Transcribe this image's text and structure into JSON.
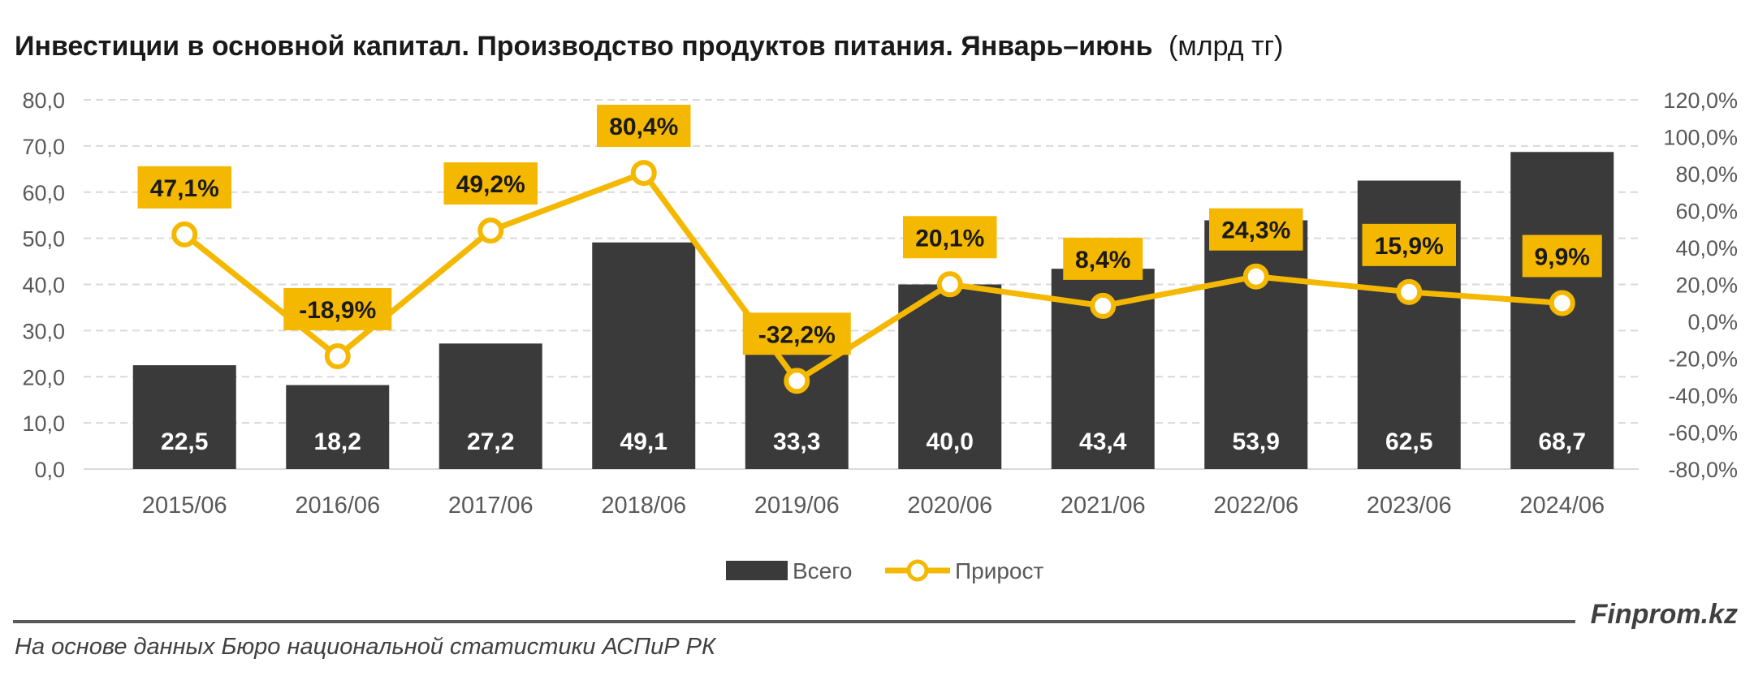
{
  "title": "Инвестиции в основной капитал. Производство продуктов питания. Январь–июнь",
  "title_unit": "(млрд тг)",
  "footer_brand": "Finprom.kz",
  "footer_source": "На основе данных Бюро национальной статистики АСПиР РК",
  "colors": {
    "bar": "#3a3a3a",
    "line": "#f5b800",
    "label_bg": "#f5b800",
    "grid": "#d9d9d9",
    "axis_text": "#595959",
    "rule": "#595959"
  },
  "chart_data": {
    "type": "bar",
    "categories": [
      "2015/06",
      "2016/06",
      "2017/06",
      "2018/06",
      "2019/06",
      "2020/06",
      "2021/06",
      "2022/06",
      "2023/06",
      "2024/06"
    ],
    "series": [
      {
        "name": "Всего",
        "type": "bar",
        "axis": "left",
        "values": [
          22.5,
          18.2,
          27.2,
          49.1,
          33.3,
          40.0,
          43.4,
          53.9,
          62.5,
          68.7
        ],
        "labels": [
          "22,5",
          "18,2",
          "27,2",
          "49,1",
          "33,3",
          "40,0",
          "43,4",
          "53,9",
          "62,5",
          "68,7"
        ]
      },
      {
        "name": "Прирост",
        "type": "line",
        "axis": "right",
        "values": [
          47.1,
          -18.9,
          49.2,
          80.4,
          -32.2,
          20.1,
          8.4,
          24.3,
          15.9,
          9.9
        ],
        "labels": [
          "47,1%",
          "-18,9%",
          "49,2%",
          "80,4%",
          "-32,2%",
          "20,1%",
          "8,4%",
          "24,3%",
          "15,9%",
          "9,9%"
        ],
        "label_position": [
          "above",
          "above",
          "above",
          "above",
          "above",
          "above",
          "above",
          "above",
          "above",
          "above"
        ]
      }
    ],
    "y_left": {
      "min": 0,
      "max": 80,
      "step": 10,
      "ticks": [
        "0,0",
        "10,0",
        "20,0",
        "30,0",
        "40,0",
        "50,0",
        "60,0",
        "70,0",
        "80,0"
      ]
    },
    "y_right": {
      "min": -80,
      "max": 120,
      "step": 20,
      "ticks": [
        "-80,0%",
        "-60,0%",
        "-40,0%",
        "-20,0%",
        "0,0%",
        "20,0%",
        "40,0%",
        "60,0%",
        "80,0%",
        "100,0%",
        "120,0%"
      ]
    },
    "grid": true,
    "legend_position": "bottom"
  }
}
